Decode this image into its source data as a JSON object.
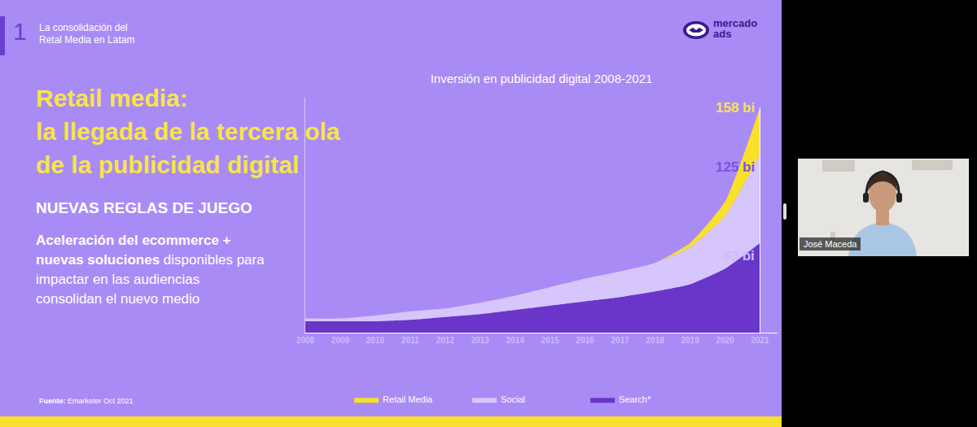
{
  "slide": {
    "section_number": "1",
    "section_title": [
      "La consolidación del",
      "Retal Media en Latam"
    ],
    "logo": [
      "mercado",
      "ads"
    ],
    "headline": [
      "Retail media:",
      "la llegada de la tercera ola",
      "de la publicidad digital"
    ],
    "subheading": "NUEVAS REGLAS DE JUEGO",
    "body": [
      [
        {
          "text": "Aceleración del ecommerce +",
          "bold": true
        }
      ],
      [
        {
          "text": "nuevas soluciones",
          "bold": true
        },
        {
          "text": " disponibles para",
          "bold": false
        }
      ],
      [
        {
          "text": "impactar en las audiencias",
          "bold": false
        }
      ],
      [
        {
          "text": "consolidan el nuevo medio",
          "bold": false
        }
      ]
    ],
    "source": {
      "label": "Fuente:",
      "text": "Emarketer Oct 2021"
    }
  },
  "chart_data": {
    "type": "area",
    "title": "Inversión en publicidad digital 2008-2021",
    "stacked": true,
    "x": [
      2008,
      2009,
      2010,
      2011,
      2012,
      2013,
      2014,
      2015,
      2016,
      2017,
      2018,
      2019,
      2020,
      2021
    ],
    "xlim": [
      2008,
      2021.5
    ],
    "xticks": [
      2008,
      2009,
      2010,
      2011,
      2012,
      2013,
      2014,
      2015,
      2016,
      2017,
      2018,
      2019,
      2020,
      2021
    ],
    "ylim": [
      0,
      165
    ],
    "tick_labels": "x",
    "grid": false,
    "legend": "bottom",
    "series": [
      {
        "name": "Retail Media",
        "color": "#f9e02a",
        "values": [
          0,
          0,
          0,
          0,
          0,
          0,
          0,
          0,
          0,
          0,
          0,
          3,
          10,
          33
        ]
      },
      {
        "name": "Social",
        "color": "#d6c6fb",
        "values": [
          2,
          2,
          4,
          6,
          6,
          8,
          10,
          13,
          16,
          18,
          20,
          26,
          37,
          62
        ]
      },
      {
        "name": "Search*",
        "color": "#6a35c9",
        "values": [
          8,
          8,
          8,
          9,
          11,
          13,
          16,
          19,
          22,
          25,
          29,
          34,
          45,
          63
        ]
      }
    ],
    "annotations": [
      {
        "x": 2021,
        "y": 158,
        "text": "158 bi"
      },
      {
        "x": 2021,
        "y": 125,
        "text": "125 bi"
      },
      {
        "x": 2021,
        "y": 63,
        "text": "63 bi"
      }
    ]
  },
  "video": {
    "participant": "José Maceda"
  }
}
